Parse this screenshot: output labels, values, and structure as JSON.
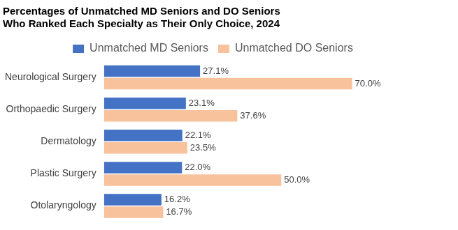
{
  "chart_data": {
    "type": "bar",
    "orientation": "horizontal",
    "title": [
      "Percentages of Unmatched MD Seniors and DO Seniors",
      "Who Ranked Each Specialty as Their Only Choice, 2024"
    ],
    "categories": [
      "Neurological Surgery",
      "Orthopaedic Surgery",
      "Dermatology",
      "Plastic Surgery",
      "Otolaryngology"
    ],
    "series": [
      {
        "name": "Unmatched MD Seniors",
        "color": "#4472c4",
        "values": [
          27.1,
          23.1,
          22.1,
          22.0,
          16.2
        ],
        "value_labels": [
          "27.1%",
          "23.1%",
          "22.1%",
          "22.0%",
          "16.2%"
        ]
      },
      {
        "name": "Unmatched DO Seniors",
        "color": "#f8c29c",
        "values": [
          70.0,
          37.6,
          23.5,
          50.0,
          16.7
        ],
        "value_labels": [
          "70.0%",
          "37.6%",
          "23.5%",
          "50.0%",
          "16.7%"
        ]
      }
    ],
    "xlim": [
      0,
      90
    ],
    "grid": false,
    "legend": "top",
    "data_labels": true,
    "tick_labels": "y"
  }
}
